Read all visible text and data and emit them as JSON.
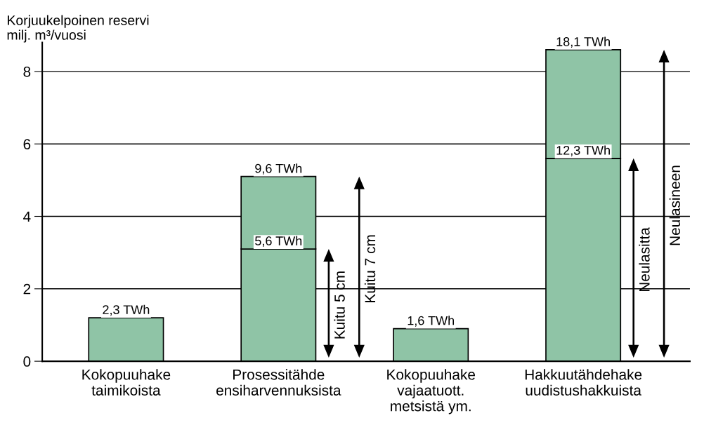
{
  "chart_data": {
    "type": "bar",
    "stacked": true,
    "ylabel": "Korjuukelpoinen reservi\nmilj. m³/vuosi",
    "categories": [
      "Kokopuuhake\ntaimikoista",
      "Prosessitähde\nensiharvennuksista",
      "Kokopuuhake\nvajaatuott.\nmetsistä ym.",
      "Hakkuutähdehake\nuudistushakkuista"
    ],
    "series": [
      {
        "color": "#8fc4a6",
        "values": [
          1.2,
          3.1,
          0.9,
          5.6
        ]
      },
      {
        "color": "#8fc4a6",
        "values": [
          null,
          2.0,
          null,
          3.0
        ]
      }
    ],
    "ylim": [
      0,
      8.8
    ],
    "yticks": [
      0,
      2,
      4,
      6,
      8
    ],
    "grid": "y",
    "annotations": [
      {
        "text": "2,3 TWh",
        "x": "Kokopuuhake\ntaimikoista",
        "y": 1.2
      },
      {
        "text": "5,6 TWh",
        "x": "Prosessitähde\nensiharvennuksista",
        "y": 3.1
      },
      {
        "text": "9,6 TWh",
        "x": "Prosessitähde\nensiharvennuksista",
        "y": 5.1
      },
      {
        "text": "1,6 TWh",
        "x": "Kokopuuhake\nvajaatuott.\nmetsistä ym.",
        "y": 0.9
      },
      {
        "text": "12,3 TWh",
        "x": "Hakkuutähdehake\nuudistushakkuista",
        "y": 5.6
      },
      {
        "text": "18,1 TWh",
        "x": "Hakkuutähdehake\nuudistushakkuista",
        "y": 8.6
      },
      "Kuitu 5 cm",
      "Kuitu 7 cm",
      "Neulasitta",
      "Neulasineen"
    ]
  }
}
